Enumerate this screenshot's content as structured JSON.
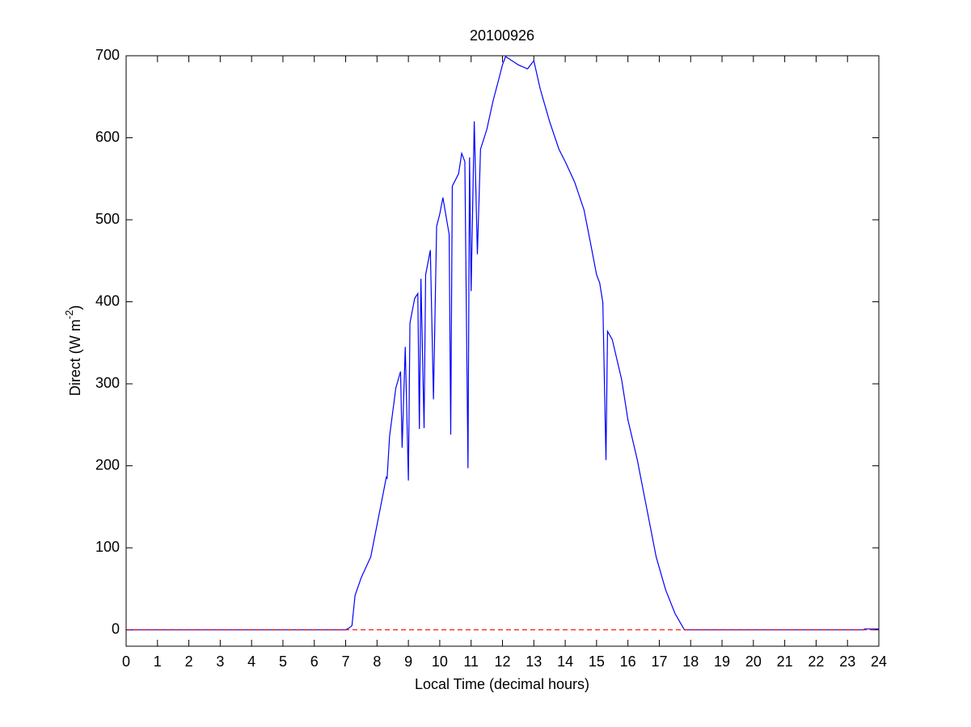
{
  "chart_data": {
    "type": "line",
    "title": "20100926",
    "xlabel": "Local Time (decimal hours)",
    "ylabel": "Direct (W m",
    "ylabel_superscript": "-2",
    "ylabel_end": ")",
    "x": [
      0,
      7.0,
      7.1,
      7.2,
      7.3,
      7.5,
      7.8,
      8.0,
      8.2,
      8.3,
      8.32,
      8.4,
      8.6,
      8.75,
      8.8,
      8.9,
      9.0,
      9.05,
      9.2,
      9.3,
      9.35,
      9.4,
      9.5,
      9.55,
      9.7,
      9.8,
      9.9,
      10.0,
      10.1,
      10.3,
      10.35,
      10.4,
      10.6,
      10.7,
      10.8,
      10.9,
      10.95,
      11.0,
      11.1,
      11.2,
      11.3,
      11.5,
      11.7,
      11.9,
      12.0,
      12.1,
      12.3,
      12.5,
      12.8,
      13.0,
      13.2,
      13.5,
      13.8,
      14.0,
      14.3,
      14.6,
      14.8,
      15.0,
      15.1,
      15.2,
      15.3,
      15.35,
      15.5,
      15.8,
      16.0,
      16.3,
      16.6,
      16.9,
      17.2,
      17.5,
      17.8,
      23.5,
      23.55,
      24
    ],
    "series": [
      {
        "name": "Direct",
        "color": "#0000ff",
        "values": [
          0,
          0,
          2,
          5,
          42,
          64,
          89,
          128,
          167,
          187,
          184,
          236,
          295,
          315,
          222,
          345,
          182,
          374,
          404,
          410,
          245,
          428,
          246,
          433,
          463,
          281,
          492,
          507,
          527,
          482,
          238,
          541,
          556,
          581,
          571,
          197,
          576,
          413,
          620,
          458,
          586,
          610,
          645,
          674,
          689,
          699,
          694,
          689,
          684,
          694,
          660,
          620,
          586,
          571,
          546,
          512,
          473,
          433,
          423,
          399,
          207,
          364,
          354,
          305,
          256,
          207,
          148,
          89,
          49,
          20,
          0,
          0,
          1,
          1
        ]
      }
    ],
    "reference_line": {
      "value": 0,
      "color": "#ff0000",
      "dashed": true
    },
    "xlim": [
      0,
      24
    ],
    "xticks": [
      0,
      1,
      2,
      3,
      4,
      5,
      6,
      7,
      8,
      9,
      10,
      11,
      12,
      13,
      14,
      15,
      16,
      17,
      18,
      19,
      20,
      21,
      22,
      23,
      24
    ],
    "ylim": [
      -20,
      700
    ],
    "yticks": [
      0,
      100,
      200,
      300,
      400,
      500,
      600,
      700
    ],
    "grid": false
  }
}
